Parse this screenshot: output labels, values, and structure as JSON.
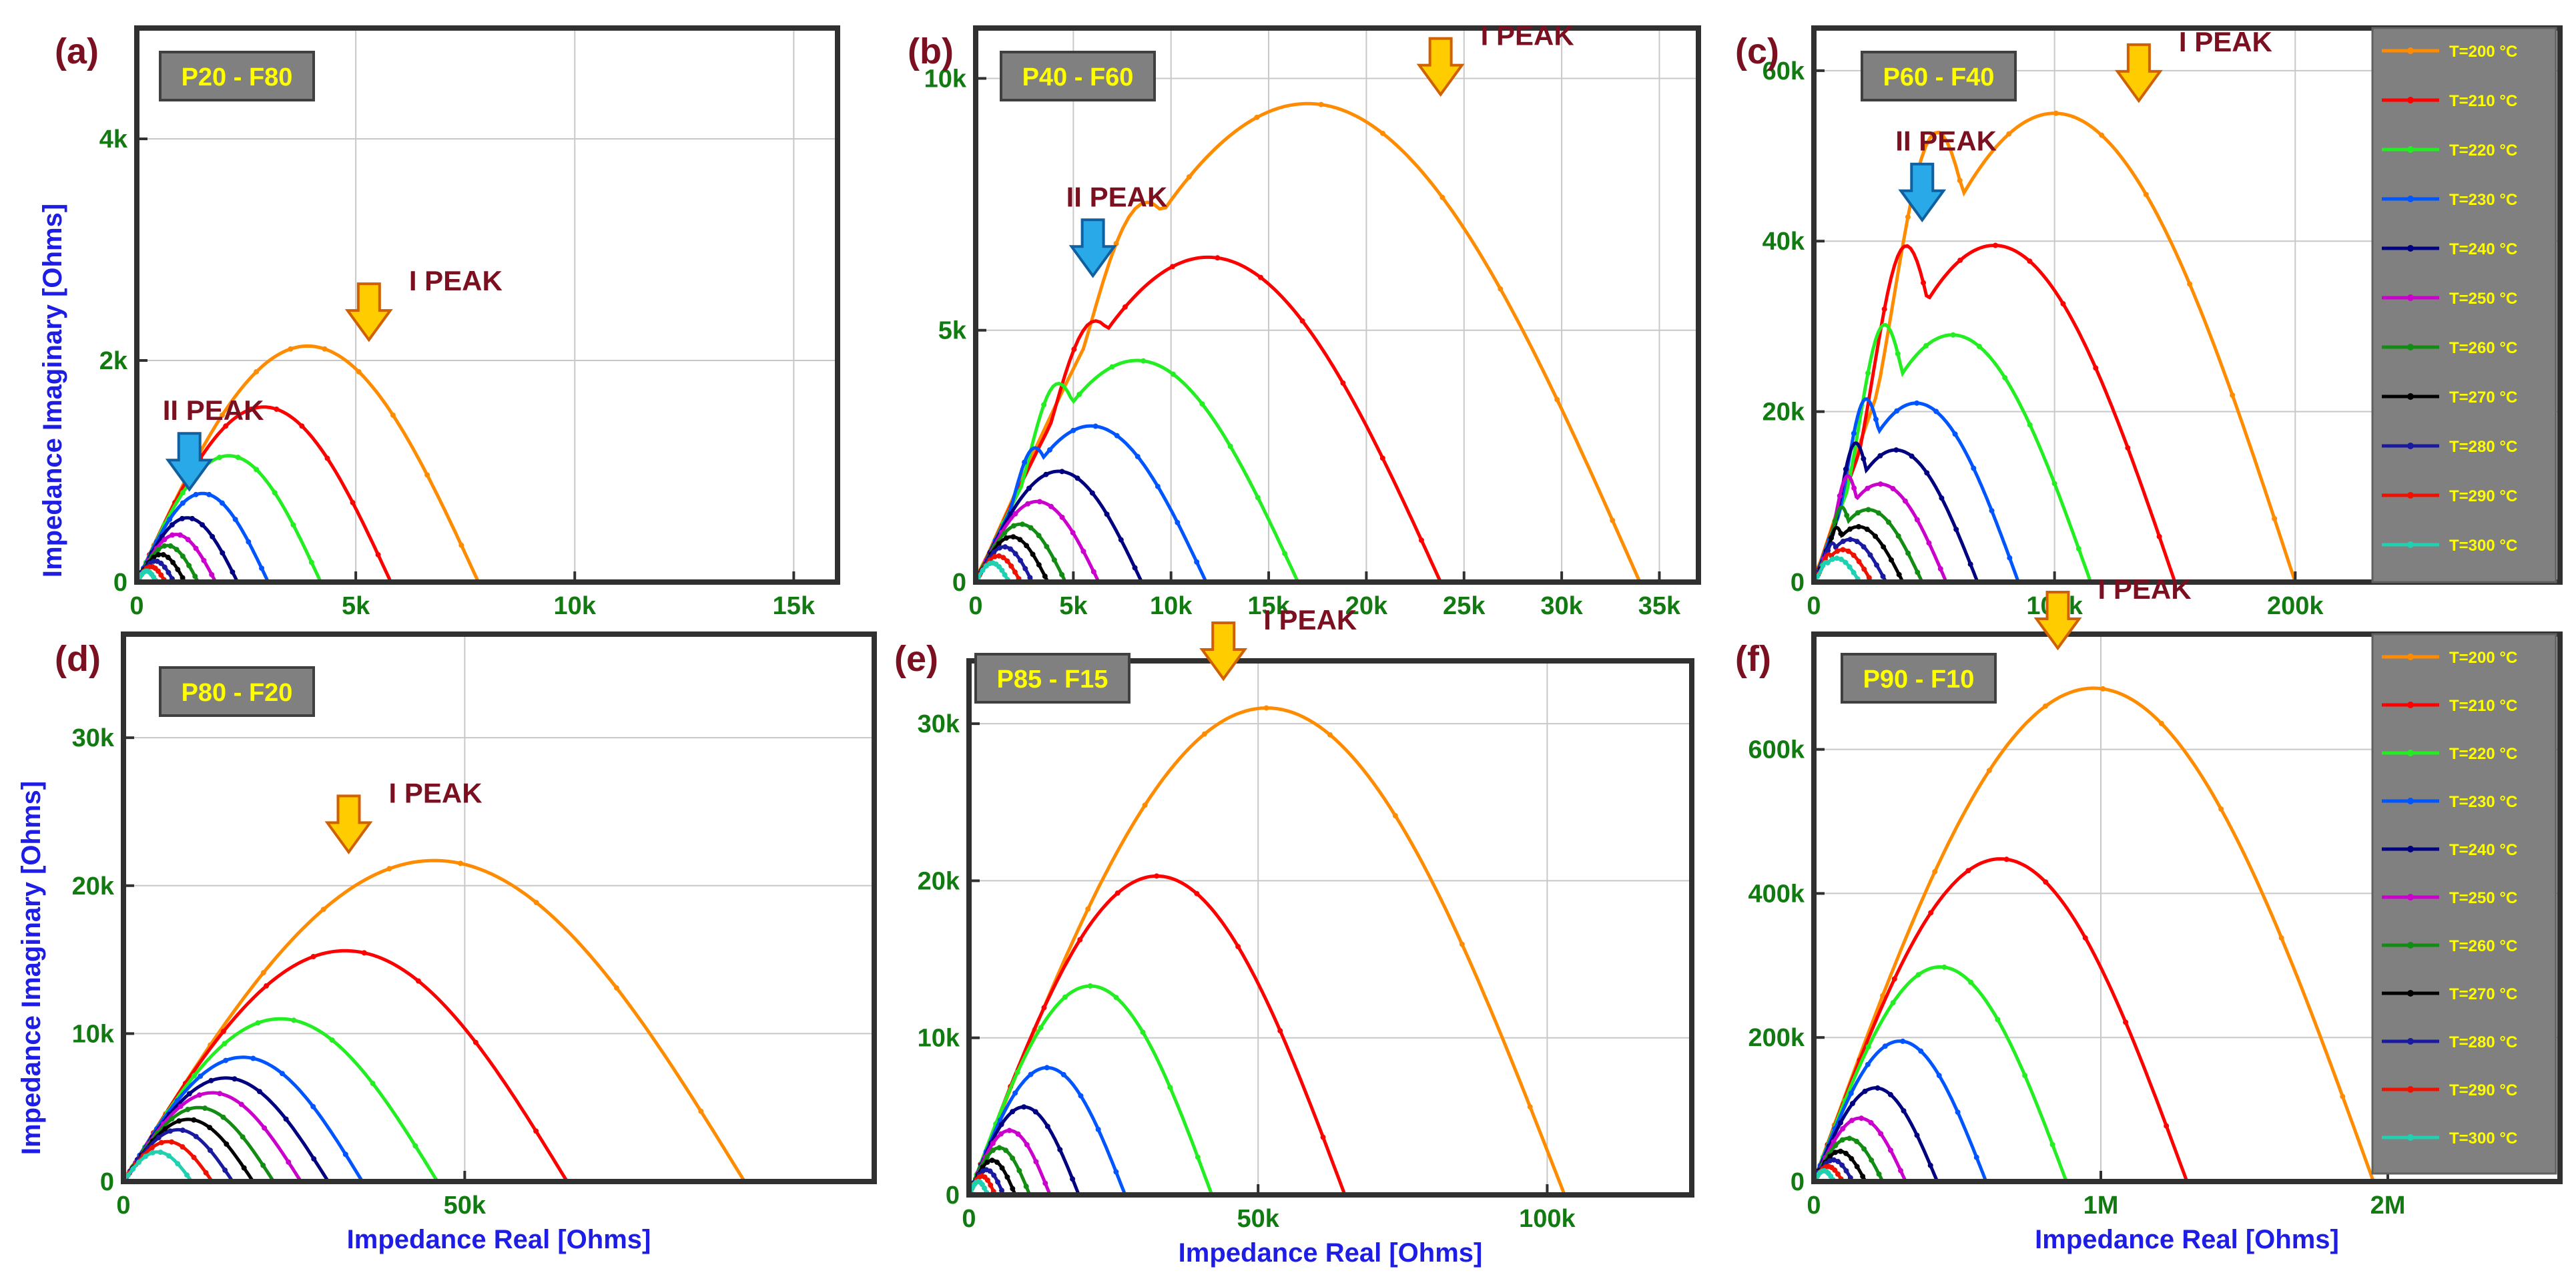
{
  "figure": {
    "x_axis_title": "Impedance Real [Ohms]",
    "y_axis_title": "Impedance Imaginary [Ohms]",
    "peak_label_1": "I PEAK",
    "peak_label_2": "II PEAK"
  },
  "legend": {
    "entries": [
      {
        "label": "T=200 °C",
        "color": "#ff8c00"
      },
      {
        "label": "T=210 °C",
        "color": "#ff0000"
      },
      {
        "label": "T=220 °C",
        "color": "#22ee22"
      },
      {
        "label": "T=230 °C",
        "color": "#0055ff"
      },
      {
        "label": "T=240 °C",
        "color": "#000080"
      },
      {
        "label": "T=250 °C",
        "color": "#cc00cc"
      },
      {
        "label": "T=260 °C",
        "color": "#128c12"
      },
      {
        "label": "T=270 °C",
        "color": "#000000"
      },
      {
        "label": "T=280 °C",
        "color": "#1a1aa0"
      },
      {
        "label": "T=290 °C",
        "color": "#ee1100"
      },
      {
        "label": "T=300 °C",
        "color": "#20d0b0"
      }
    ]
  },
  "chart_data": [
    {
      "type": "line",
      "panel": "(a)",
      "sample": "P20 - F80",
      "xlim": [
        0,
        16000
      ],
      "ylim": [
        0,
        5000
      ],
      "xticks": [
        0,
        5000,
        10000,
        15000
      ],
      "xtick_labels": [
        "0",
        "5k",
        "10k",
        "15k"
      ],
      "yticks": [
        0,
        2000,
        4000
      ],
      "ytick_labels": [
        "0",
        "2k",
        "4k"
      ],
      "xlabel": "",
      "ylabel": "Impedance Imaginary [Ohms]",
      "series_widths": [
        7800,
        5800,
        4200,
        3000,
        2300,
        1800,
        1400,
        1100,
        850,
        650,
        450
      ],
      "series_heights": [
        2130,
        1580,
        1140,
        800,
        580,
        430,
        330,
        250,
        190,
        140,
        100
      ],
      "series_shoulders": [
        0,
        0,
        0,
        0,
        0,
        0,
        0,
        0,
        0,
        0,
        0
      ],
      "series_skew": 0,
      "annotations": [
        {
          "text": "I PEAK",
          "x": 5300,
          "y": 2150
        },
        {
          "text": "II PEAK",
          "x": 1200,
          "y": 800
        }
      ]
    },
    {
      "type": "line",
      "panel": "(b)",
      "sample": "P40 - F60",
      "xlim": [
        0,
        37000
      ],
      "ylim": [
        0,
        11000
      ],
      "xticks": [
        0,
        5000,
        10000,
        15000,
        20000,
        25000,
        30000,
        35000
      ],
      "xtick_labels": [
        "0",
        "5k",
        "10k",
        "15k",
        "20k",
        "25k",
        "30k",
        "35k"
      ],
      "yticks": [
        0,
        5000,
        10000
      ],
      "ytick_labels": [
        "0",
        "5k",
        "10k"
      ],
      "xlabel": "",
      "ylabel": "",
      "series_widths": [
        34000,
        23800,
        16500,
        11800,
        8500,
        6300,
        4600,
        3700,
        2900,
        2300,
        1700
      ],
      "series_heights": [
        9500,
        6450,
        4400,
        3100,
        2200,
        1600,
        1150,
        900,
        700,
        520,
        380
      ],
      "series_shoulders": [
        5500,
        3800,
        3000,
        2000,
        0,
        0,
        0,
        0,
        0,
        0,
        0
      ],
      "series_skew": 0.2,
      "annotations": [
        {
          "text": "I PEAK",
          "x": 23800,
          "y": 9600
        },
        {
          "text": "II PEAK",
          "x": 6000,
          "y": 6000
        }
      ]
    },
    {
      "type": "line",
      "panel": "(c)",
      "sample": "P60 - F40",
      "xlim": [
        0,
        310000
      ],
      "ylim": [
        0,
        65000
      ],
      "xticks": [
        0,
        100000,
        200000
      ],
      "xtick_labels": [
        "0",
        "100k",
        "200k"
      ],
      "yticks": [
        0,
        20000,
        40000,
        60000
      ],
      "ytick_labels": [
        "0",
        "20k",
        "40k",
        "60k"
      ],
      "xlabel": "",
      "ylabel": "",
      "series_widths": [
        200000,
        150000,
        115000,
        85000,
        68000,
        55000,
        45000,
        37000,
        30000,
        24000,
        19000
      ],
      "series_heights": [
        55000,
        39500,
        29000,
        21000,
        15500,
        11500,
        8500,
        6500,
        5000,
        3800,
        2800
      ],
      "series_shoulders": [
        41000,
        31000,
        24000,
        17000,
        13000,
        10000,
        7000,
        5000,
        3500,
        2500,
        1800
      ],
      "series_skew": 0.15,
      "annotations": [
        {
          "text": "I PEAK",
          "x": 135000,
          "y": 56000
        },
        {
          "text": "II PEAK",
          "x": 45000,
          "y": 42000
        }
      ]
    },
    {
      "type": "line",
      "panel": "(d)",
      "sample": "P80 - F20",
      "xlim": [
        0,
        110000
      ],
      "ylim": [
        0,
        37000
      ],
      "xticks": [
        0,
        50000
      ],
      "xtick_labels": [
        "0",
        "50k"
      ],
      "yticks": [
        0,
        10000,
        20000,
        30000
      ],
      "ytick_labels": [
        "0",
        "10k",
        "20k",
        "30k"
      ],
      "xlabel": "Impedance Real [Ohms]",
      "ylabel": "Impedance Imaginary [Ohms]",
      "series_widths": [
        91000,
        65000,
        46000,
        35000,
        30000,
        26000,
        22000,
        19000,
        16000,
        13000,
        10000
      ],
      "series_heights": [
        21700,
        15600,
        11000,
        8400,
        7000,
        6000,
        5000,
        4200,
        3500,
        2700,
        2000
      ],
      "series_shoulders": [
        0,
        0,
        0,
        0,
        0,
        0,
        0,
        0,
        0,
        0,
        0
      ],
      "series_skew": -0.35,
      "annotations": [
        {
          "text": "I PEAK",
          "x": 33000,
          "y": 22000
        }
      ]
    },
    {
      "type": "line",
      "panel": "(e)",
      "sample": "P85 - F15",
      "xlim": [
        0,
        125000
      ],
      "ylim": [
        0,
        34000
      ],
      "xticks": [
        0,
        50000,
        100000
      ],
      "xtick_labels": [
        "0",
        "50k",
        "100k"
      ],
      "yticks": [
        0,
        10000,
        20000,
        30000
      ],
      "ytick_labels": [
        "0",
        "10k",
        "20k",
        "30k"
      ],
      "xlabel": "Impedance Real [Ohms]",
      "ylabel": "",
      "series_widths": [
        103000,
        65000,
        42000,
        27000,
        19000,
        14000,
        10500,
        8000,
        6000,
        4500,
        3200
      ],
      "series_heights": [
        31000,
        20300,
        13300,
        8100,
        5600,
        4100,
        3000,
        2200,
        1600,
        1200,
        850
      ],
      "series_shoulders": [
        0,
        0,
        0,
        0,
        0,
        0,
        0,
        0,
        0,
        0,
        0
      ],
      "series_skew": -0.15,
      "annotations": [
        {
          "text": "I PEAK",
          "x": 44000,
          "y": 32600
        }
      ]
    },
    {
      "type": "line",
      "panel": "(f)",
      "sample": "P90 - F10",
      "xlim": [
        0,
        2600000
      ],
      "ylim": [
        0,
        760000
      ],
      "xticks": [
        0,
        1000000,
        2000000
      ],
      "xtick_labels": [
        "0",
        "1M",
        "2M"
      ],
      "yticks": [
        0,
        200000,
        400000,
        600000
      ],
      "ytick_labels": [
        "0",
        "200k",
        "400k",
        "600k"
      ],
      "xlabel": "Impedance Real [Ohms]",
      "ylabel": "",
      "series_widths": [
        1950000,
        1300000,
        880000,
        600000,
        430000,
        320000,
        240000,
        180000,
        135000,
        100000,
        70000
      ],
      "series_heights": [
        685000,
        448000,
        298000,
        195000,
        130000,
        88000,
        60000,
        42000,
        30000,
        21000,
        15000
      ],
      "series_shoulders": [
        0,
        0,
        0,
        0,
        0,
        0,
        0,
        0,
        0,
        0,
        0
      ],
      "series_skew": -0.1,
      "annotations": [
        {
          "text": "I PEAK",
          "x": 850000,
          "y": 735000
        }
      ]
    }
  ]
}
